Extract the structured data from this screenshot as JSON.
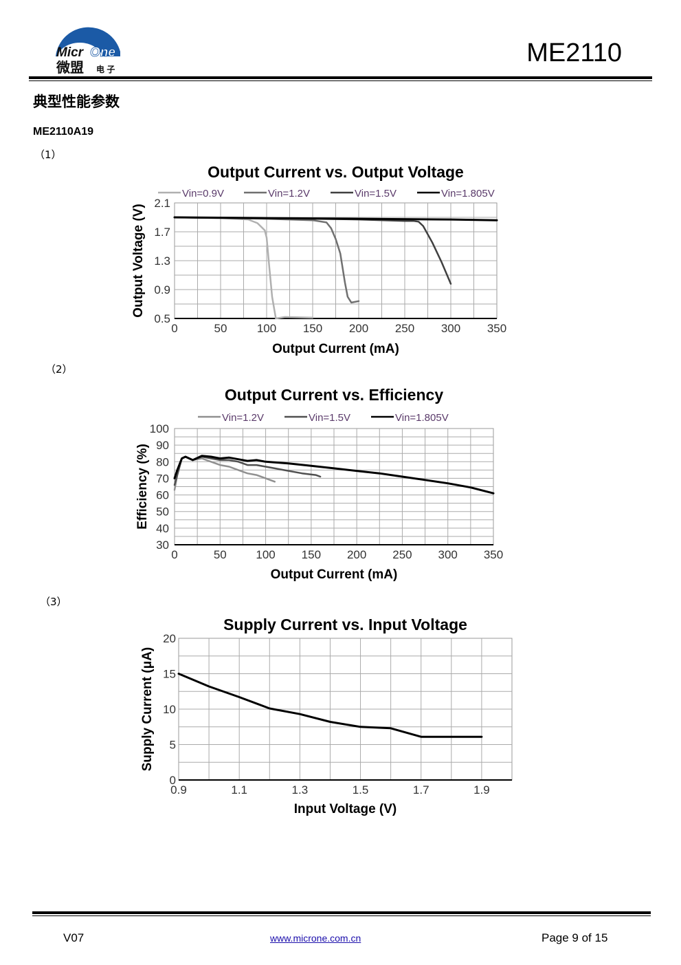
{
  "header": {
    "logo_text": "MicrOne",
    "logo_cn": "微盟电子",
    "title": "ME2110"
  },
  "section_title": "典型性能参数",
  "model": "ME2110A19",
  "items": [
    "（1）",
    "（2）",
    "（3）"
  ],
  "footer": {
    "version": "V07",
    "url": "www.microne.com.cn",
    "page": "Page 9 of 15"
  },
  "chart_data": [
    {
      "type": "line",
      "title": "Output Current vs. Output Voltage",
      "xlabel": "Output Current (mA)",
      "ylabel": "Output Voltage (V)",
      "xlim": [
        0,
        350
      ],
      "ylim": [
        0.5,
        2.1
      ],
      "xticks": [
        0,
        50,
        100,
        150,
        200,
        250,
        300,
        350
      ],
      "yticks": [
        0.5,
        0.9,
        1.3,
        1.7,
        2.1
      ],
      "xtick_labels": [
        "0",
        "50",
        "100",
        "150",
        "200",
        "250",
        "300",
        "350"
      ],
      "ytick_labels": [
        "0.5",
        "0.9",
        "1.3",
        "1.7",
        "2.1"
      ],
      "xgrid": 25,
      "ygrid": 0.2,
      "legend": "top",
      "series": [
        {
          "name": "Vin=0.9V",
          "color": "#b0b0b0",
          "width": 2.5,
          "x": [
            0,
            50,
            80,
            90,
            98,
            100,
            103,
            106,
            110,
            120,
            150
          ],
          "y": [
            1.9,
            1.89,
            1.87,
            1.82,
            1.72,
            1.62,
            1.2,
            0.8,
            0.5,
            0.52,
            0.51
          ]
        },
        {
          "name": "Vin=1.2V",
          "color": "#707070",
          "width": 2.5,
          "x": [
            0,
            100,
            150,
            165,
            170,
            175,
            180,
            185,
            188,
            192,
            200
          ],
          "y": [
            1.9,
            1.88,
            1.86,
            1.83,
            1.75,
            1.6,
            1.4,
            1.0,
            0.8,
            0.72,
            0.74
          ]
        },
        {
          "name": "Vin=1.5V",
          "color": "#404040",
          "width": 2.5,
          "x": [
            0,
            150,
            200,
            250,
            260,
            265,
            270,
            280,
            290,
            300
          ],
          "y": [
            1.9,
            1.88,
            1.87,
            1.85,
            1.85,
            1.84,
            1.78,
            1.55,
            1.28,
            0.98
          ]
        },
        {
          "name": "Vin=1.805V",
          "color": "#000000",
          "width": 3,
          "x": [
            0,
            100,
            200,
            300,
            350
          ],
          "y": [
            1.9,
            1.89,
            1.88,
            1.87,
            1.86
          ]
        }
      ]
    },
    {
      "type": "line",
      "title": "Output Current vs. Efficiency",
      "xlabel": "Output Current (mA)",
      "ylabel": "Efficiency (%)",
      "xlim": [
        0,
        350
      ],
      "ylim": [
        30,
        100
      ],
      "xticks": [
        0,
        50,
        100,
        150,
        200,
        250,
        300,
        350
      ],
      "yticks": [
        30,
        40,
        50,
        60,
        70,
        80,
        90,
        100
      ],
      "xtick_labels": [
        "0",
        "50",
        "100",
        "150",
        "200",
        "250",
        "300",
        "350"
      ],
      "ytick_labels": [
        "30",
        "40",
        "50",
        "60",
        "70",
        "80",
        "90",
        "100"
      ],
      "xgrid": 25,
      "ygrid": 5,
      "legend": "top",
      "series": [
        {
          "name": "Vin=1.2V",
          "color": "#909090",
          "width": 2.5,
          "x": [
            0,
            3,
            8,
            12,
            20,
            30,
            40,
            50,
            60,
            70,
            80,
            90,
            100,
            110
          ],
          "y": [
            63,
            72,
            82,
            83,
            81,
            82,
            80,
            78,
            77,
            75,
            73,
            72,
            70,
            68
          ]
        },
        {
          "name": "Vin=1.5V",
          "color": "#505050",
          "width": 2.5,
          "x": [
            0,
            3,
            8,
            12,
            20,
            30,
            40,
            50,
            60,
            70,
            80,
            90,
            100,
            110,
            120,
            140,
            155,
            160
          ],
          "y": [
            66,
            72,
            82,
            83,
            81,
            83,
            82,
            81,
            81,
            80,
            78,
            78,
            77,
            76,
            75,
            73,
            72,
            71
          ]
        },
        {
          "name": "Vin=1.805V",
          "color": "#000000",
          "width": 3,
          "x": [
            0,
            3,
            8,
            12,
            20,
            30,
            40,
            50,
            60,
            70,
            80,
            90,
            100,
            125,
            150,
            175,
            200,
            225,
            250,
            275,
            300,
            325,
            350
          ],
          "y": [
            70,
            75,
            82,
            83,
            81,
            83.5,
            83,
            82,
            82.5,
            81.5,
            80.5,
            81,
            80,
            79,
            77.5,
            76,
            74.5,
            73,
            71,
            69,
            67,
            64.5,
            61
          ]
        }
      ]
    },
    {
      "type": "line",
      "title": "Supply Current vs. Input Voltage",
      "xlabel": "Input Voltage (V)",
      "ylabel": "Supply Current (μA)",
      "xlim": [
        0.9,
        2.0
      ],
      "ylim": [
        0,
        20
      ],
      "xticks": [
        0.9,
        1.1,
        1.3,
        1.5,
        1.7,
        1.9
      ],
      "yticks": [
        0,
        5,
        10,
        15,
        20
      ],
      "xtick_labels": [
        "0.9",
        "1.1",
        "1.3",
        "1.5",
        "1.7",
        "1.9"
      ],
      "ytick_labels": [
        "0",
        "5",
        "10",
        "15",
        "20"
      ],
      "xgrid": 0.1,
      "ygrid": 2.5,
      "legend": "none",
      "series": [
        {
          "name": "Supply Current",
          "color": "#000000",
          "width": 3,
          "x": [
            0.9,
            1.0,
            1.1,
            1.2,
            1.3,
            1.4,
            1.5,
            1.6,
            1.7,
            1.8,
            1.9
          ],
          "y": [
            15,
            13.2,
            11.7,
            10.1,
            9.3,
            8.2,
            7.5,
            7.3,
            6.1,
            6.1,
            6.1
          ]
        }
      ]
    }
  ]
}
